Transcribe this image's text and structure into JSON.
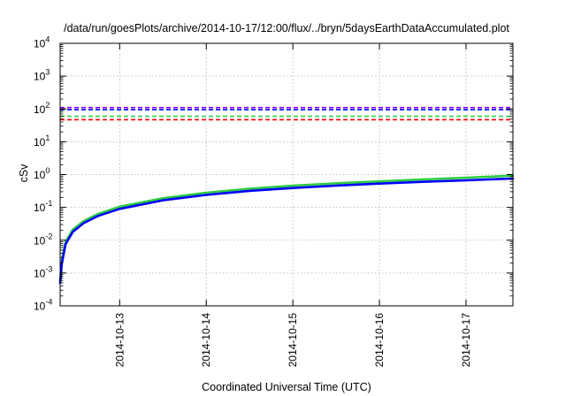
{
  "chart_data": {
    "type": "line",
    "title": "/data/run/goesPlots/archive/2014-10-17/12:00/flux/../bryn/5daysEarthDataAccumulated.plot",
    "xlabel": "Coordinated Universal Time (UTC)",
    "ylabel": "cSv",
    "y_scale": "log",
    "ylim": [
      0.0001,
      10000
    ],
    "xlim": [
      "2014-10-12T07:30",
      "2014-10-17T13:00"
    ],
    "grid": true,
    "x_tick_labels": [
      "2014-10-13",
      "2014-10-14",
      "2014-10-15",
      "2014-10-16",
      "2014-10-17"
    ],
    "y_ticks": [
      {
        "base": "10",
        "exp": "-4"
      },
      {
        "base": "10",
        "exp": "-3"
      },
      {
        "base": "10",
        "exp": "-2"
      },
      {
        "base": "10",
        "exp": "-1"
      },
      {
        "base": "10",
        "exp": "0"
      },
      {
        "base": "10",
        "exp": "1"
      },
      {
        "base": "10",
        "exp": "2"
      },
      {
        "base": "10",
        "exp": "3"
      },
      {
        "base": "10",
        "exp": "4"
      }
    ],
    "series": [
      {
        "style": "dashed",
        "color": "#8b00ff",
        "x": [
          "2014-10-12T07:30",
          "2014-10-17T13:00"
        ],
        "y": [
          110,
          110
        ]
      },
      {
        "style": "dashed",
        "color": "#0000ff",
        "x": [
          "2014-10-12T07:30",
          "2014-10-17T13:00"
        ],
        "y": [
          95,
          95
        ]
      },
      {
        "style": "dashed",
        "color": "#2ecc40",
        "x": [
          "2014-10-12T07:30",
          "2014-10-17T13:00"
        ],
        "y": [
          60,
          60
        ]
      },
      {
        "style": "dashed",
        "color": "#ff0000",
        "x": [
          "2014-10-12T07:30",
          "2014-10-17T13:00"
        ],
        "y": [
          47,
          47
        ]
      },
      {
        "style": "solid",
        "color": "#2ecc40",
        "x": [
          "2014-10-12T07:30",
          "2014-10-12T08:00",
          "2014-10-12T09:00",
          "2014-10-12T11:00",
          "2014-10-12T14:00",
          "2014-10-12T18:00",
          "2014-10-13T00:00",
          "2014-10-13T12:00",
          "2014-10-14T00:00",
          "2014-10-14T12:00",
          "2014-10-15T00:00",
          "2014-10-15T12:00",
          "2014-10-16T00:00",
          "2014-10-16T12:00",
          "2014-10-17T00:00",
          "2014-10-17T13:00"
        ],
        "y": [
          0.0006,
          0.0025,
          0.009,
          0.021,
          0.038,
          0.063,
          0.105,
          0.19,
          0.28,
          0.37,
          0.46,
          0.54,
          0.62,
          0.71,
          0.8,
          0.93
        ]
      },
      {
        "style": "solid",
        "color": "#0000ff",
        "x": [
          "2014-10-12T07:30",
          "2014-10-12T08:00",
          "2014-10-12T09:00",
          "2014-10-12T11:00",
          "2014-10-12T14:00",
          "2014-10-12T18:00",
          "2014-10-13T00:00",
          "2014-10-13T12:00",
          "2014-10-14T00:00",
          "2014-10-14T12:00",
          "2014-10-15T00:00",
          "2014-10-15T12:00",
          "2014-10-16T00:00",
          "2014-10-16T12:00",
          "2014-10-17T00:00",
          "2014-10-17T13:00"
        ],
        "y": [
          0.0005,
          0.002,
          0.0075,
          0.018,
          0.033,
          0.055,
          0.09,
          0.165,
          0.24,
          0.32,
          0.39,
          0.46,
          0.53,
          0.6,
          0.67,
          0.76
        ]
      }
    ]
  }
}
